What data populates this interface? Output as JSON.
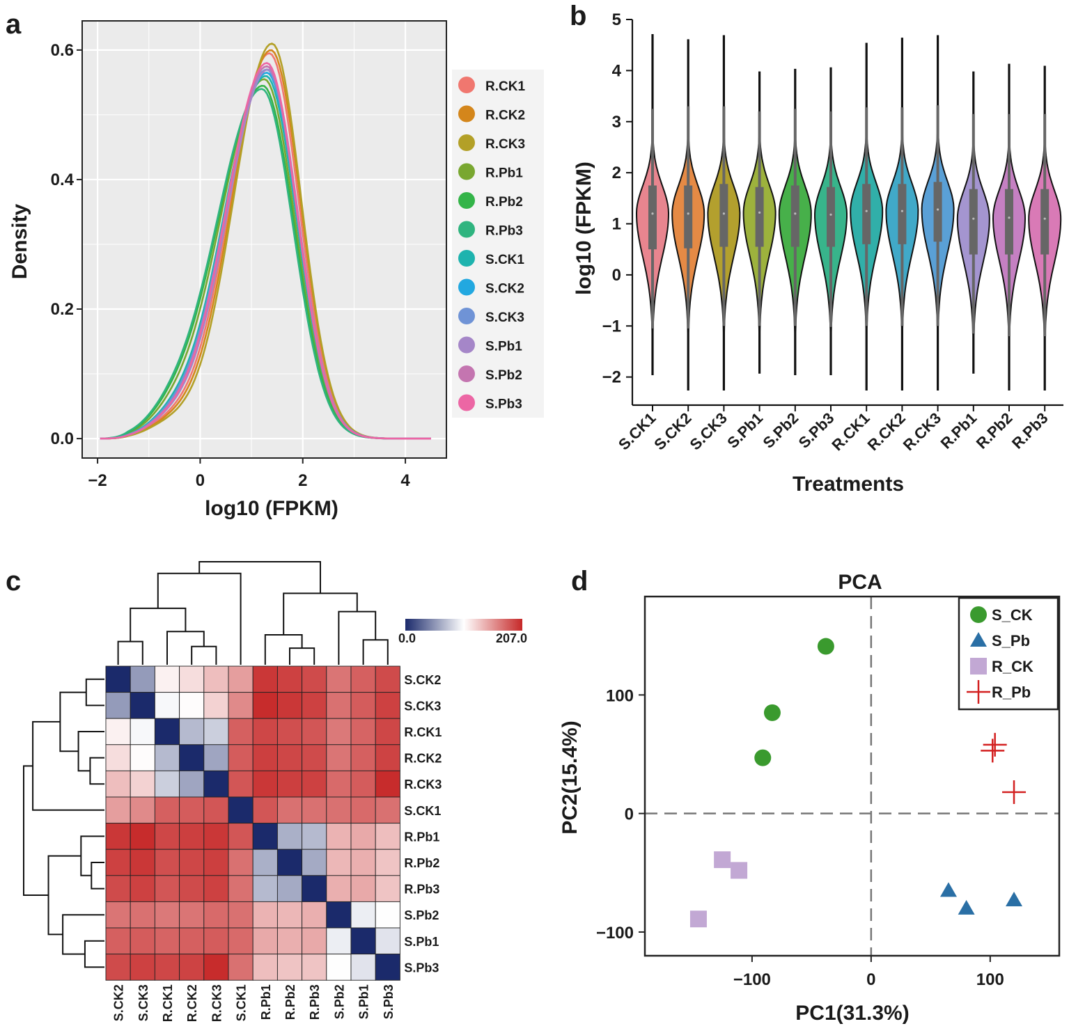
{
  "chart_data": [
    {
      "panel": "a",
      "type": "line",
      "xlabel": "log10 (FPKM)",
      "ylabel": "Density",
      "xlim": [
        -2.3,
        4.8
      ],
      "ylim": [
        -0.03,
        0.645
      ],
      "xticks": [
        -2,
        0,
        2,
        4
      ],
      "xtick_labels": [
        "−2",
        "0",
        "2",
        "4"
      ],
      "yticks": [
        0.0,
        0.2,
        0.4,
        0.6
      ],
      "ytick_labels": [
        "0.0",
        "0.2",
        "0.4",
        "0.6"
      ],
      "legend_position": "right",
      "series": [
        {
          "name": "R.CK1",
          "color": "#F0776F",
          "peak_x": 1.35,
          "peak": 0.595,
          "sd_left": 0.78,
          "sd_right": 0.58
        },
        {
          "name": "R.CK2",
          "color": "#D4861B",
          "peak_x": 1.38,
          "peak": 0.6,
          "sd_left": 0.77,
          "sd_right": 0.58
        },
        {
          "name": "R.CK3",
          "color": "#B3A027",
          "peak_x": 1.4,
          "peak": 0.61,
          "sd_left": 0.75,
          "sd_right": 0.57
        },
        {
          "name": "R.Pb1",
          "color": "#79A730",
          "peak_x": 1.25,
          "peak": 0.555,
          "sd_left": 0.86,
          "sd_right": 0.6
        },
        {
          "name": "R.Pb2",
          "color": "#33B448",
          "peak_x": 1.22,
          "peak": 0.545,
          "sd_left": 0.88,
          "sd_right": 0.61
        },
        {
          "name": "R.Pb3",
          "color": "#2FB47F",
          "peak_x": 1.2,
          "peak": 0.54,
          "sd_left": 0.89,
          "sd_right": 0.61
        },
        {
          "name": "S.CK1",
          "color": "#1EB3AE",
          "peak_x": 1.28,
          "peak": 0.56,
          "sd_left": 0.83,
          "sd_right": 0.6
        },
        {
          "name": "S.CK2",
          "color": "#22A8E0",
          "peak_x": 1.3,
          "peak": 0.565,
          "sd_left": 0.82,
          "sd_right": 0.6
        },
        {
          "name": "S.CK3",
          "color": "#6F93D6",
          "peak_x": 1.3,
          "peak": 0.57,
          "sd_left": 0.82,
          "sd_right": 0.59
        },
        {
          "name": "S.Pb1",
          "color": "#A586C8",
          "peak_x": 1.32,
          "peak": 0.57,
          "sd_left": 0.8,
          "sd_right": 0.59
        },
        {
          "name": "S.Pb2",
          "color": "#C475B0",
          "peak_x": 1.3,
          "peak": 0.575,
          "sd_left": 0.8,
          "sd_right": 0.59
        },
        {
          "name": "S.Pb3",
          "color": "#EC66A4",
          "peak_x": 1.3,
          "peak": 0.58,
          "sd_left": 0.8,
          "sd_right": 0.59
        }
      ]
    },
    {
      "panel": "b",
      "type": "violin",
      "xlabel": "Treatments",
      "ylabel": "log10 (FPKM)",
      "ylim": [
        -2.55,
        5.0
      ],
      "yticks": [
        -2,
        -1,
        0,
        1,
        2,
        3,
        4,
        5
      ],
      "ytick_labels": [
        "−2",
        "−1",
        "0",
        "1",
        "2",
        "3",
        "4",
        "5"
      ],
      "categories": [
        "S.CK1",
        "S.CK2",
        "S.CK3",
        "S.Pb1",
        "S.Pb2",
        "S.Pb3",
        "R.CK1",
        "R.CK2",
        "R.CK3",
        "R.Pb1",
        "R.Pb2",
        "R.Pb3"
      ],
      "colors": [
        "#E8858F",
        "#E58A45",
        "#B3A02E",
        "#9DB23D",
        "#47B04A",
        "#38B48B",
        "#31AFA9",
        "#41A9C8",
        "#5AA0D6",
        "#A495D0",
        "#C580C2",
        "#D97AB6"
      ],
      "min": [
        -1.95,
        -2.25,
        -2.25,
        -1.92,
        -1.95,
        -1.95,
        -2.25,
        -2.25,
        -2.25,
        -1.92,
        -2.25,
        -2.25
      ],
      "max": [
        4.7,
        4.6,
        4.68,
        3.97,
        4.02,
        4.05,
        4.53,
        4.63,
        4.68,
        3.97,
        4.12,
        4.08
      ],
      "q1": [
        0.5,
        0.52,
        0.55,
        0.55,
        0.55,
        0.55,
        0.6,
        0.6,
        0.65,
        0.4,
        0.4,
        0.4
      ],
      "median": [
        1.2,
        1.2,
        1.2,
        1.22,
        1.2,
        1.18,
        1.25,
        1.25,
        1.28,
        1.1,
        1.12,
        1.1
      ],
      "q3": [
        1.75,
        1.75,
        1.78,
        1.72,
        1.75,
        1.72,
        1.78,
        1.78,
        1.82,
        1.68,
        1.68,
        1.68
      ],
      "whisker_low": [
        -1.05,
        -1.05,
        -1.0,
        -1.0,
        -1.0,
        -1.02,
        -1.0,
        -1.0,
        -1.0,
        -1.15,
        -1.2,
        -1.2
      ],
      "whisker_high": [
        3.25,
        3.3,
        3.3,
        3.2,
        3.25,
        3.2,
        3.28,
        3.28,
        3.32,
        3.15,
        3.15,
        3.15
      ]
    },
    {
      "panel": "c",
      "type": "heatmap",
      "labels": [
        "S.CK2",
        "S.CK3",
        "R.CK1",
        "R.CK2",
        "R.CK3",
        "S.CK1",
        "R.Pb1",
        "R.Pb2",
        "R.Pb3",
        "S.Pb2",
        "S.Pb1",
        "S.Pb3"
      ],
      "colorbar": {
        "min": 0.0,
        "max": 207.0,
        "min_label": "0.0",
        "max_label": "207.0",
        "low_color": "#1B2A6B",
        "mid_color": "#FFFFFF",
        "high_color": "#C62828"
      },
      "values": [
        [
          0,
          55,
          110,
          120,
          135,
          150,
          200,
          195,
          190,
          170,
          180,
          190
        ],
        [
          55,
          0,
          100,
          105,
          125,
          160,
          205,
          200,
          195,
          172,
          182,
          195
        ],
        [
          110,
          100,
          0,
          70,
          80,
          180,
          192,
          188,
          185,
          168,
          178,
          192
        ],
        [
          120,
          105,
          70,
          0,
          60,
          182,
          196,
          192,
          190,
          170,
          180,
          194
        ],
        [
          135,
          125,
          80,
          60,
          0,
          185,
          200,
          196,
          195,
          175,
          182,
          205
        ],
        [
          150,
          160,
          180,
          182,
          185,
          0,
          185,
          172,
          172,
          172,
          175,
          172
        ],
        [
          200,
          205,
          192,
          196,
          200,
          185,
          0,
          65,
          70,
          140,
          145,
          135
        ],
        [
          195,
          200,
          188,
          192,
          196,
          172,
          65,
          0,
          62,
          138,
          142,
          132
        ],
        [
          190,
          195,
          185,
          190,
          195,
          172,
          70,
          62,
          0,
          142,
          145,
          132
        ],
        [
          170,
          172,
          168,
          170,
          175,
          172,
          140,
          138,
          142,
          0,
          95,
          103
        ],
        [
          180,
          182,
          178,
          180,
          182,
          175,
          145,
          142,
          145,
          95,
          0,
          90
        ],
        [
          190,
          195,
          192,
          194,
          205,
          172,
          135,
          132,
          132,
          103,
          90,
          0
        ]
      ],
      "dendrogram_order_note": "rows and columns clustered in the order shown"
    },
    {
      "panel": "d",
      "type": "scatter",
      "title": "PCA",
      "xlabel": "PC1(31.3%)",
      "ylabel": "PC2(15.4%)",
      "xlim": [
        -190,
        158
      ],
      "ylim": [
        -120,
        183
      ],
      "xticks": [
        -100,
        0,
        100
      ],
      "xtick_labels": [
        "−100",
        "0",
        "100"
      ],
      "yticks": [
        -100,
        0,
        100
      ],
      "ytick_labels": [
        "−100",
        "0",
        "100"
      ],
      "reference_lines": {
        "x": 0,
        "y": 0,
        "style": "dashed"
      },
      "legend_position": "top-right",
      "series": [
        {
          "name": "S_CK",
          "marker": "circle",
          "color": "#3A9A2E",
          "points": [
            [
              -38,
              141
            ],
            [
              -83,
              85
            ],
            [
              -91,
              47
            ]
          ]
        },
        {
          "name": "S_Pb",
          "marker": "triangle",
          "color": "#2A6FA5",
          "points": [
            [
              65,
              -65
            ],
            [
              80,
              -80
            ],
            [
              120,
              -73
            ]
          ]
        },
        {
          "name": "R_CK",
          "marker": "square",
          "color": "#C2A8D4",
          "points": [
            [
              -125,
              -39
            ],
            [
              -111,
              -48
            ],
            [
              -145,
              -89
            ]
          ]
        },
        {
          "name": "R_Pb",
          "marker": "plus",
          "color": "#D32020",
          "points": [
            [
              104,
              58
            ],
            [
              102,
              53
            ],
            [
              120,
              18
            ]
          ]
        }
      ]
    }
  ],
  "panels": {
    "a": {
      "letter": "a"
    },
    "b": {
      "letter": "b"
    },
    "c": {
      "letter": "c"
    },
    "d": {
      "letter": "d"
    }
  }
}
